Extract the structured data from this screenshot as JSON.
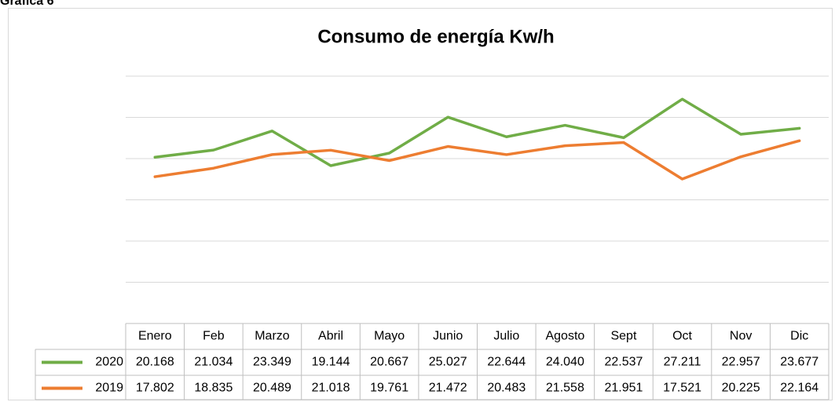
{
  "caption": "Gráfica 6",
  "chart_data": {
    "type": "line",
    "title": "Consumo de energía Kw/h",
    "categories": [
      "Enero",
      "Feb",
      "Marzo",
      "Abril",
      "Mayo",
      "Junio",
      "Julio",
      "Agosto",
      "Sept",
      "Oct",
      "Nov",
      "Dic"
    ],
    "series": [
      {
        "name": "2020",
        "color": "#70ad47",
        "values": [
          20.168,
          21.034,
          23.349,
          19.144,
          20.667,
          25.027,
          22.644,
          24.04,
          22.537,
          27.211,
          22.957,
          23.677
        ],
        "value_labels": [
          "20.168",
          "21.034",
          "23.349",
          "19.144",
          "20.667",
          "25.027",
          "22.644",
          "24.040",
          "22.537",
          "27.211",
          "22.957",
          "23.677"
        ]
      },
      {
        "name": "2019",
        "color": "#ed7d31",
        "values": [
          17.802,
          18.835,
          20.489,
          21.018,
          19.761,
          21.472,
          20.483,
          21.558,
          21.951,
          17.521,
          20.225,
          22.164
        ],
        "value_labels": [
          "17.802",
          "18.835",
          "20.489",
          "21.018",
          "19.761",
          "21.472",
          "20.483",
          "21.558",
          "21.951",
          "17.521",
          "20.225",
          "22.164"
        ]
      }
    ],
    "ylim": [
      0,
      30
    ],
    "yticks": [
      0,
      5,
      10,
      15,
      20,
      25,
      30
    ],
    "grid": true
  }
}
